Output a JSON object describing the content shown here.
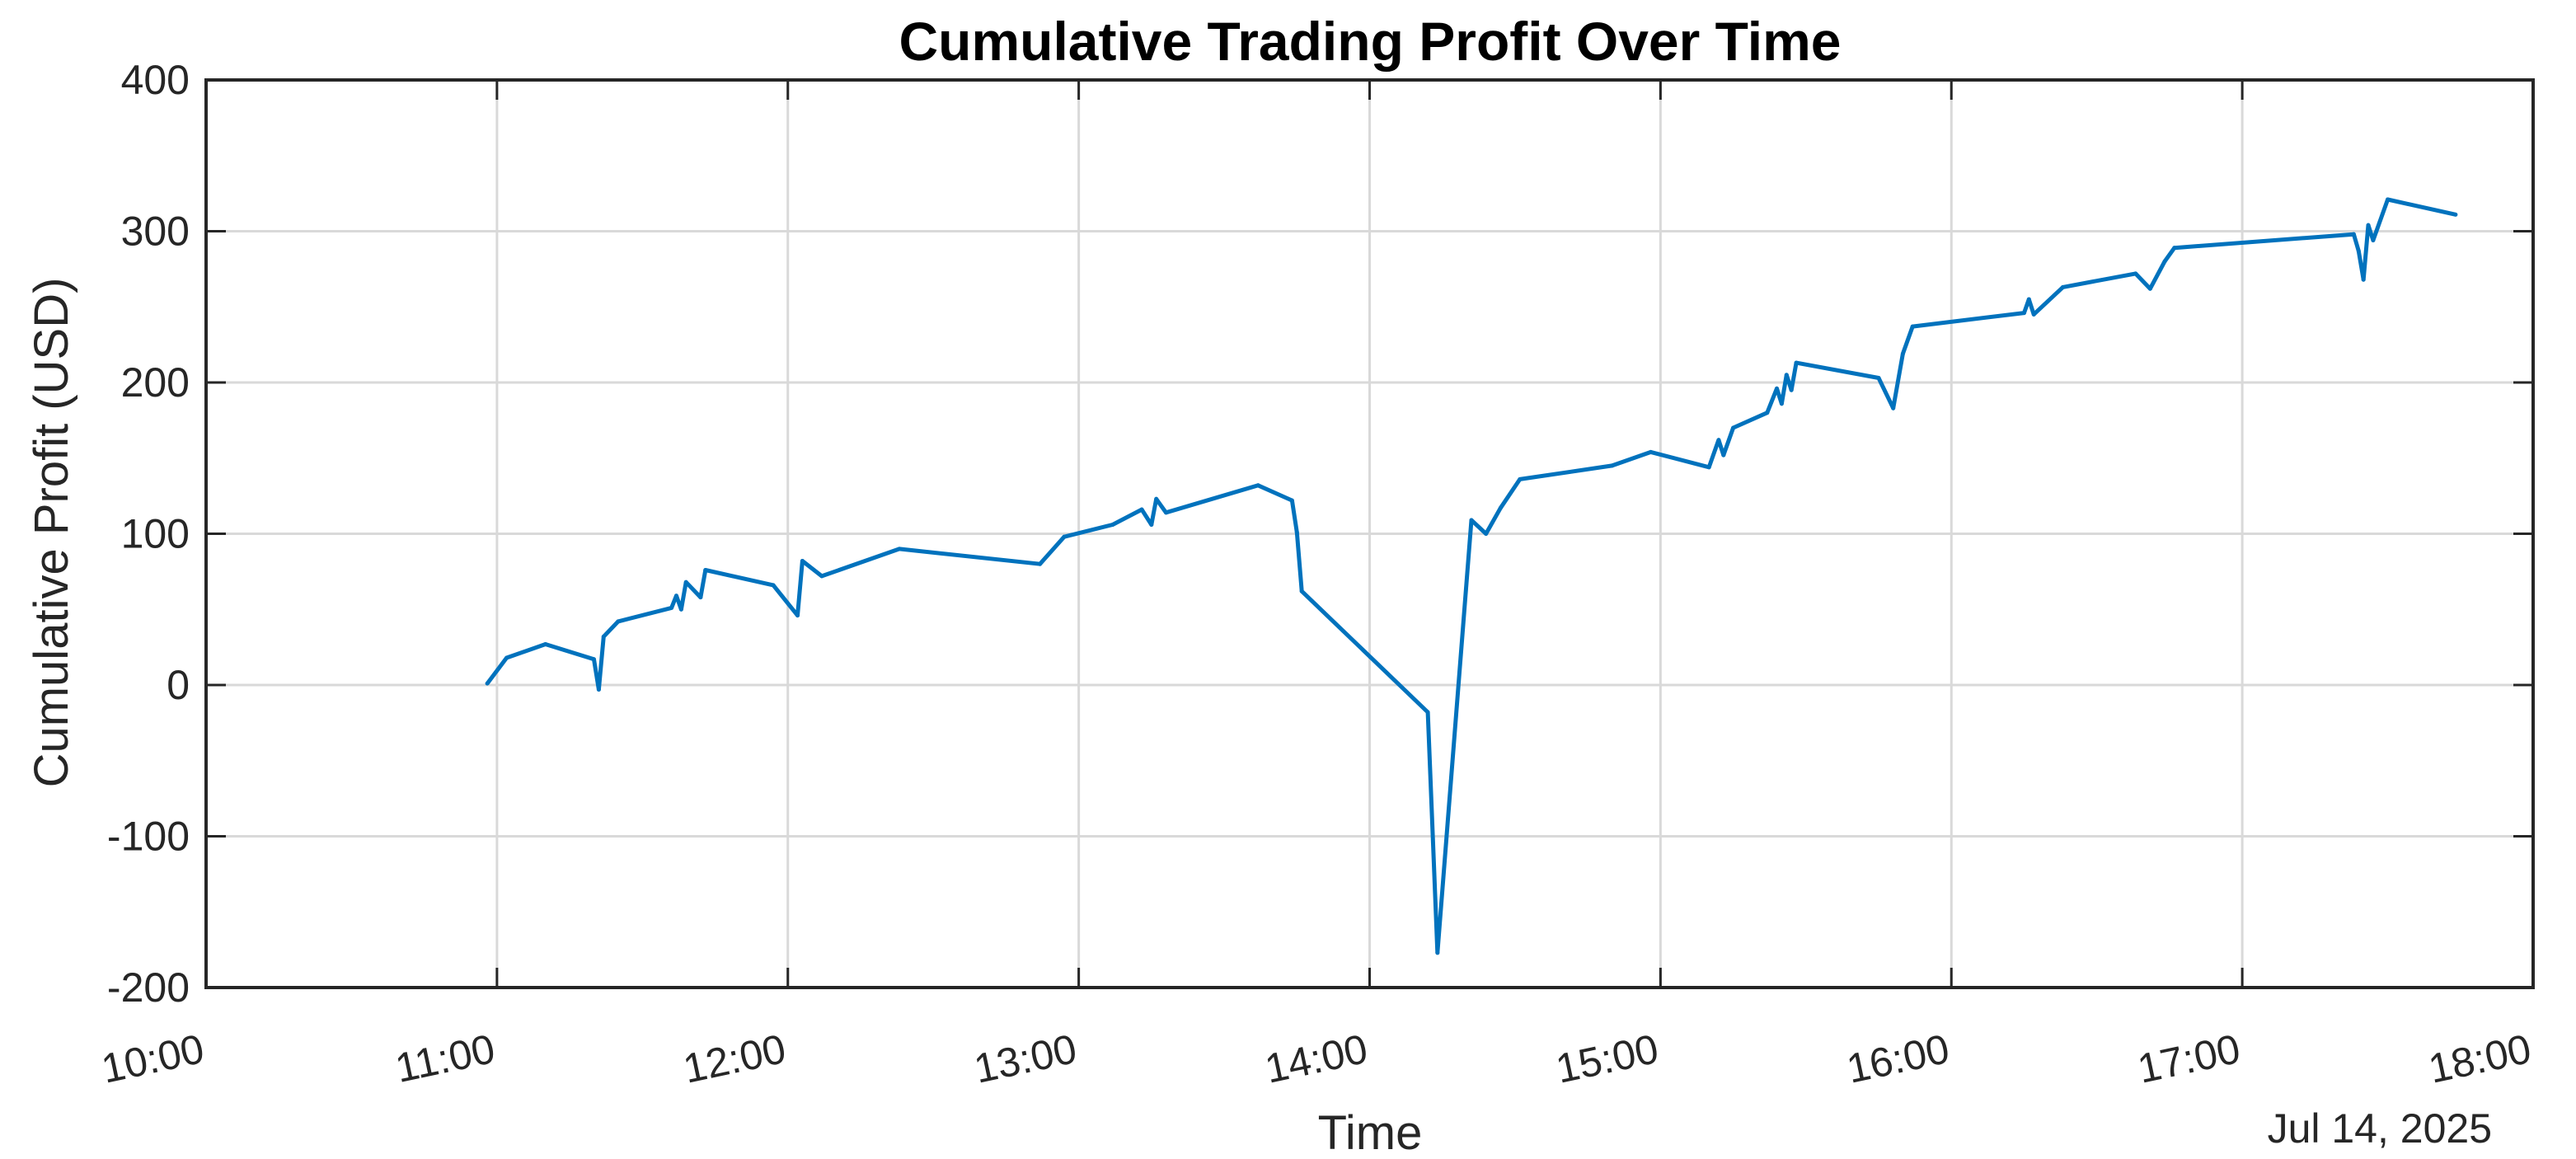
{
  "chart_data": {
    "type": "line",
    "title": "Cumulative Trading Profit Over Time",
    "xlabel": "Time",
    "ylabel": "Cumulative Profit (USD)",
    "date_label": "Jul 14, 2025",
    "xlim": [
      "10:00",
      "18:00"
    ],
    "ylim": [
      -200,
      400
    ],
    "x_ticks": [
      "10:00",
      "11:00",
      "12:00",
      "13:00",
      "14:00",
      "15:00",
      "16:00",
      "17:00",
      "18:00"
    ],
    "y_ticks": [
      400,
      300,
      200,
      100,
      0,
      -100,
      -200
    ],
    "grid": true,
    "series_color": "#0072BD",
    "series": [
      {
        "points": [
          {
            "x": "10:58",
            "y": 1
          },
          {
            "x": "11:02",
            "y": 18
          },
          {
            "x": "11:10",
            "y": 27
          },
          {
            "x": "11:20",
            "y": 17
          },
          {
            "x": "11:21",
            "y": -3
          },
          {
            "x": "11:22",
            "y": 32
          },
          {
            "x": "11:25",
            "y": 42
          },
          {
            "x": "11:36",
            "y": 51
          },
          {
            "x": "11:37",
            "y": 59
          },
          {
            "x": "11:38",
            "y": 50
          },
          {
            "x": "11:39",
            "y": 68
          },
          {
            "x": "11:42",
            "y": 58
          },
          {
            "x": "11:43",
            "y": 76
          },
          {
            "x": "11:57",
            "y": 66
          },
          {
            "x": "12:02",
            "y": 46
          },
          {
            "x": "12:03",
            "y": 82
          },
          {
            "x": "12:07",
            "y": 72
          },
          {
            "x": "12:23",
            "y": 90
          },
          {
            "x": "12:52",
            "y": 80
          },
          {
            "x": "12:57",
            "y": 98
          },
          {
            "x": "13:07",
            "y": 106
          },
          {
            "x": "13:13",
            "y": 116
          },
          {
            "x": "13:15",
            "y": 106
          },
          {
            "x": "13:16",
            "y": 123
          },
          {
            "x": "13:18",
            "y": 114
          },
          {
            "x": "13:37",
            "y": 132
          },
          {
            "x": "13:44",
            "y": 122
          },
          {
            "x": "13:45",
            "y": 101
          },
          {
            "x": "13:46",
            "y": 62
          },
          {
            "x": "14:12",
            "y": -18
          },
          {
            "x": "14:14",
            "y": -177
          },
          {
            "x": "14:21",
            "y": 109
          },
          {
            "x": "14:24",
            "y": 100
          },
          {
            "x": "14:27",
            "y": 117
          },
          {
            "x": "14:31",
            "y": 136
          },
          {
            "x": "14:50",
            "y": 145
          },
          {
            "x": "14:58",
            "y": 154
          },
          {
            "x": "15:10",
            "y": 144
          },
          {
            "x": "15:12",
            "y": 162
          },
          {
            "x": "15:13",
            "y": 152
          },
          {
            "x": "15:15",
            "y": 170
          },
          {
            "x": "15:22",
            "y": 180
          },
          {
            "x": "15:24",
            "y": 196
          },
          {
            "x": "15:25",
            "y": 186
          },
          {
            "x": "15:26",
            "y": 205
          },
          {
            "x": "15:27",
            "y": 195
          },
          {
            "x": "15:28",
            "y": 213
          },
          {
            "x": "15:45",
            "y": 203
          },
          {
            "x": "15:48",
            "y": 183
          },
          {
            "x": "15:50",
            "y": 219
          },
          {
            "x": "15:52",
            "y": 237
          },
          {
            "x": "16:15",
            "y": 246
          },
          {
            "x": "16:16",
            "y": 255
          },
          {
            "x": "16:17",
            "y": 245
          },
          {
            "x": "16:23",
            "y": 263
          },
          {
            "x": "16:38",
            "y": 272
          },
          {
            "x": "16:41",
            "y": 262
          },
          {
            "x": "16:44",
            "y": 280
          },
          {
            "x": "16:46",
            "y": 289
          },
          {
            "x": "17:23",
            "y": 298
          },
          {
            "x": "17:24",
            "y": 287
          },
          {
            "x": "17:25",
            "y": 268
          },
          {
            "x": "17:26",
            "y": 304
          },
          {
            "x": "17:27",
            "y": 294
          },
          {
            "x": "17:30",
            "y": 321
          },
          {
            "x": "17:44",
            "y": 311
          }
        ]
      }
    ]
  }
}
